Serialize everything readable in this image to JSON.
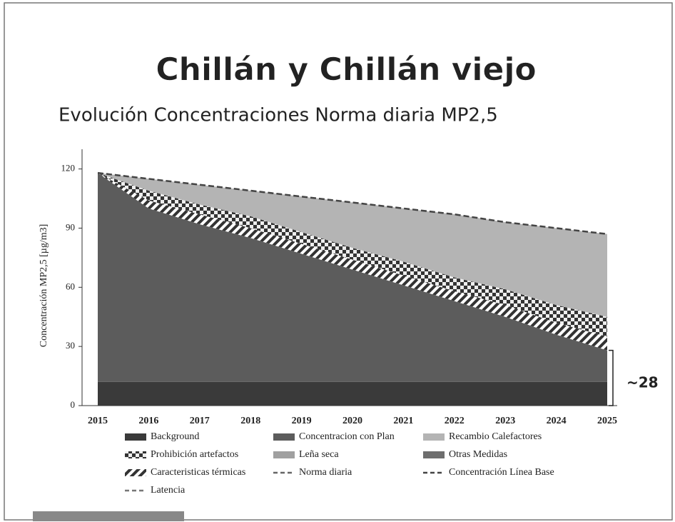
{
  "chart_data": {
    "type": "stacked_area",
    "title": "Chillán y Chillán viejo",
    "subtitle": "Evolución Concentraciones Norma diaria MP2,5",
    "y_label": "Concentración MP2,5 [µg/m3]",
    "annotation": "~28",
    "categories": [
      "2015",
      "2016",
      "2017",
      "2018",
      "2019",
      "2020",
      "2021",
      "2022",
      "2023",
      "2024",
      "2025"
    ],
    "ylim": [
      0,
      130
    ],
    "yticks": [
      0,
      30,
      60,
      90,
      120
    ],
    "series": [
      {
        "name": "Background",
        "color": "#3a3a3a",
        "kind": "area",
        "values": [
          12,
          12,
          12,
          12,
          12,
          12,
          12,
          12,
          12,
          12,
          12
        ]
      },
      {
        "name": "Concentracion con Plan",
        "color": "#5c5c5c",
        "kind": "area",
        "values": [
          106,
          88,
          80,
          73,
          65,
          57,
          49,
          41,
          33,
          24,
          16
        ]
      },
      {
        "name": "Caracteristicas térmicas",
        "color": "#e6e6e6",
        "kind": "area",
        "values": [
          0,
          4,
          5,
          5,
          5,
          5,
          5,
          5,
          6,
          6,
          7
        ]
      },
      {
        "name": "Prohibición artefactos",
        "color": "#8a8a8a",
        "kind": "area",
        "values": [
          0,
          5,
          5,
          6,
          6,
          6,
          7,
          7,
          8,
          9,
          10
        ]
      },
      {
        "name": "Recambio Calefactores",
        "color": "#b4b4b4",
        "kind": "area",
        "values": [
          0,
          6,
          10,
          13,
          18,
          23,
          27,
          32,
          34,
          39,
          42
        ]
      },
      {
        "name": "Concentración Línea Base",
        "color": "#444444",
        "kind": "line",
        "values": [
          118,
          115,
          112,
          109,
          106,
          103,
          100,
          97,
          93,
          90,
          87
        ]
      },
      {
        "name": "Leña seca",
        "color": "#a0a0a0"
      },
      {
        "name": "Otras Medidas",
        "color": "#6e6e6e"
      },
      {
        "name": "Norma diaria",
        "color": "#666666"
      },
      {
        "name": "Latencia",
        "color": "#777777"
      }
    ]
  }
}
